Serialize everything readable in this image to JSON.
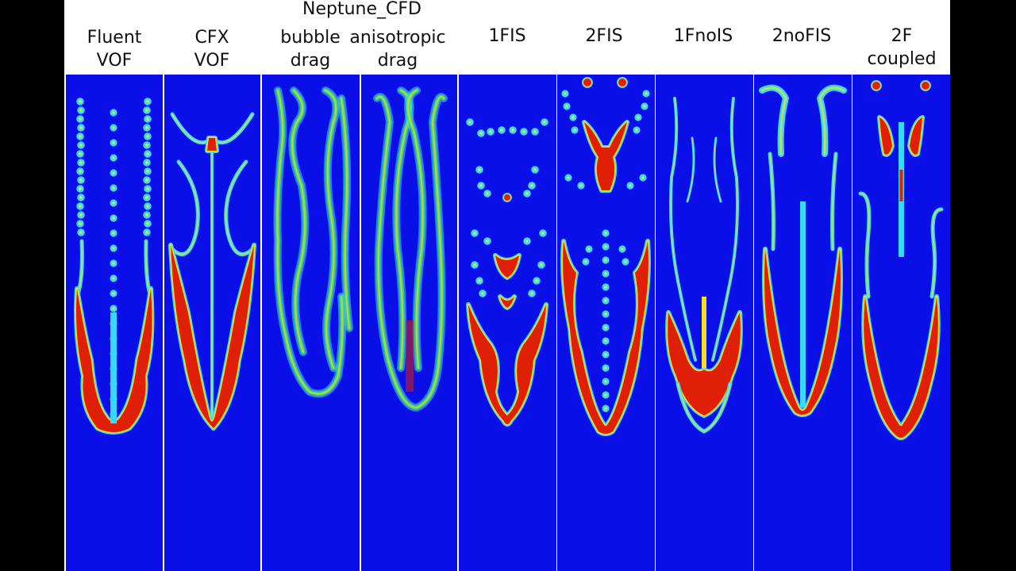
{
  "group_title": "Neptune_CFD",
  "columns": [
    {
      "lines": [
        "Fluent",
        "VOF"
      ]
    },
    {
      "lines": [
        "CFX",
        "VOF"
      ]
    },
    {
      "lines": [
        "bubble",
        "drag"
      ]
    },
    {
      "lines": [
        "anisotropic",
        "drag"
      ]
    },
    {
      "lines": [
        "1FIS"
      ]
    },
    {
      "lines": [
        "2FIS"
      ]
    },
    {
      "lines": [
        "1FnoIS"
      ]
    },
    {
      "lines": [
        "2noFIS"
      ]
    },
    {
      "lines": [
        "2F",
        "coupled"
      ]
    }
  ],
  "colors": {
    "background": "#0a0fe8",
    "interface": "#38d8ff",
    "mid": "#f3e21b",
    "gas": "#e02006",
    "diffuse_green": "#3fe06a"
  }
}
